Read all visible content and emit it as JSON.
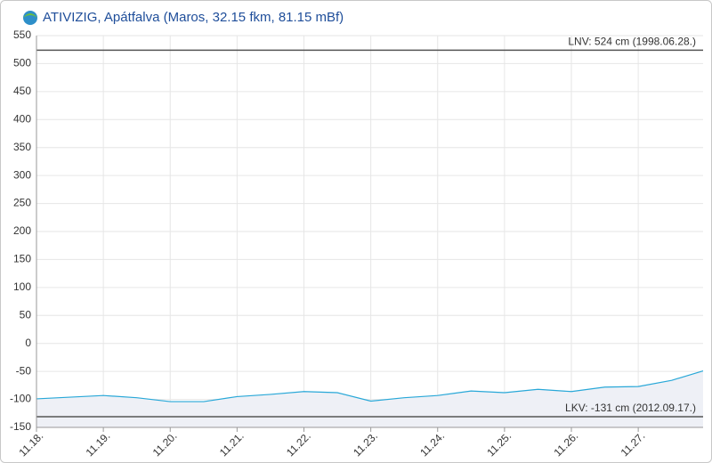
{
  "chart_data": {
    "type": "area",
    "title": "ATIVIZIG, Apátfalva (Maros, 32.15 fkm, 81.15 mBf)",
    "x": [
      0,
      0.5,
      1,
      1.5,
      2,
      2.5,
      3,
      3.5,
      4,
      4.5,
      5,
      5.5,
      6,
      6.5,
      7,
      7.5,
      8,
      8.5,
      9,
      9.5,
      9.97
    ],
    "values": [
      -99,
      -96,
      -93,
      -97,
      -104,
      -104,
      -95,
      -91,
      -86,
      -88,
      -103,
      -97,
      -93,
      -85,
      -88,
      -82,
      -86,
      -78,
      -77,
      -66,
      -49
    ],
    "color": "#29a8d8",
    "fill": "#eef0f6",
    "xlim": [
      0,
      9.97
    ],
    "xticks": [
      {
        "value": 0,
        "label": "11.18."
      },
      {
        "value": 1,
        "label": "11.19."
      },
      {
        "value": 2,
        "label": "11.20."
      },
      {
        "value": 3,
        "label": "11.21."
      },
      {
        "value": 4,
        "label": "11.22."
      },
      {
        "value": 5,
        "label": "11.23."
      },
      {
        "value": 6,
        "label": "11.24."
      },
      {
        "value": 7,
        "label": "11.25."
      },
      {
        "value": 8,
        "label": "11.26."
      },
      {
        "value": 9,
        "label": "11.27."
      }
    ],
    "ylim": [
      -150,
      550
    ],
    "yticks": [
      -150,
      -100,
      -50,
      0,
      50,
      100,
      150,
      200,
      250,
      300,
      350,
      400,
      450,
      500,
      550
    ],
    "grid": true,
    "reference_lines": [
      {
        "value": 524,
        "label": "LNV: 524 cm (1998.06.28.)"
      },
      {
        "value": -131,
        "label": "LKV: -131 cm (2012.09.17.)"
      }
    ]
  }
}
